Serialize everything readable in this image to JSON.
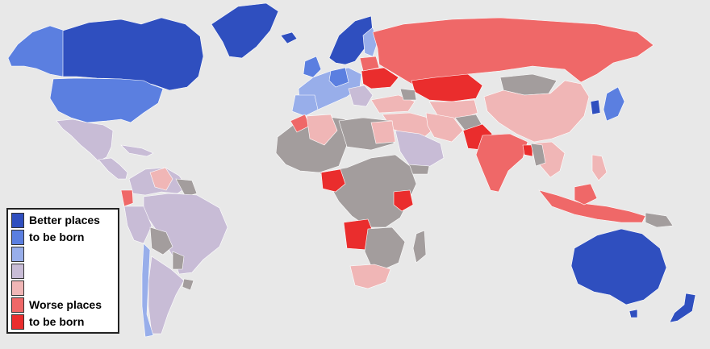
{
  "map": {
    "colors": {
      "best": "#2f4fbf",
      "better": "#5b7fe0",
      "good": "#98aeea",
      "neutral": "#c8bcd6",
      "fair": "#f0b6b6",
      "poor": "#ef6868",
      "worst": "#ea2d2d",
      "nodata": "#a39d9d",
      "ocean": "#e8e8e8"
    }
  },
  "legend": {
    "rows": [
      {
        "color": "#2f4fbf",
        "label": "Better places"
      },
      {
        "color": "#5b7fe0",
        "label": "to be born"
      },
      {
        "color": "#98aeea",
        "label": ""
      },
      {
        "color": "#c8bcd6",
        "label": ""
      },
      {
        "color": "#f0b6b6",
        "label": ""
      },
      {
        "color": "#ef6868",
        "label": "Worse places"
      },
      {
        "color": "#ea2d2d",
        "label": "to be born"
      }
    ]
  }
}
